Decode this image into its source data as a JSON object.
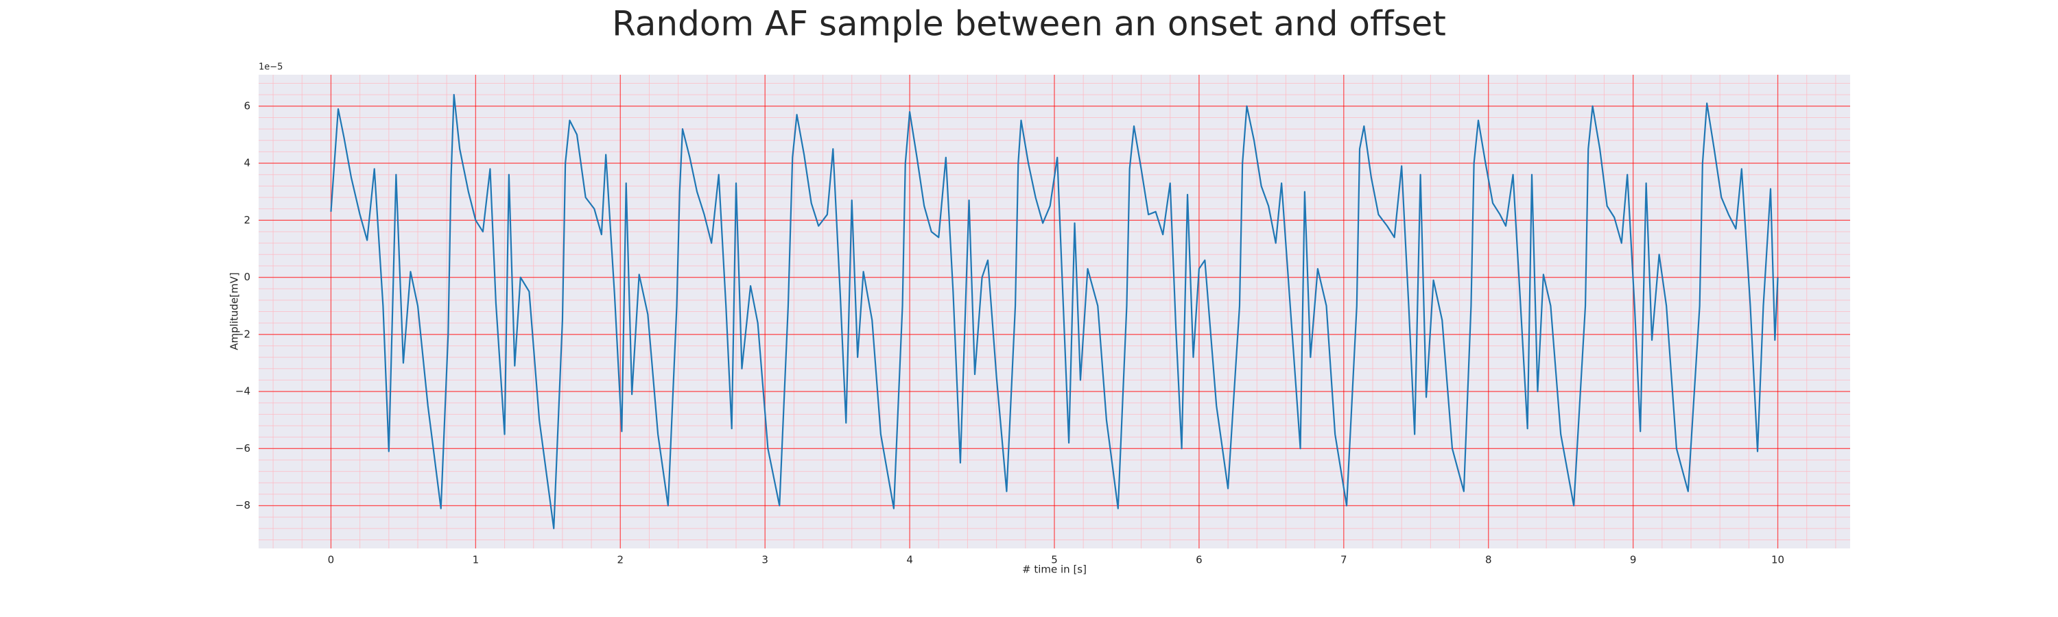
{
  "chart_data": {
    "type": "line",
    "title": "Random AF sample between an onset and offset",
    "x_label": "# time in [s]",
    "y_label": "Amplitude[mV]",
    "y_offset_label": "1e−5",
    "color": "#1f77b4",
    "grid": true,
    "minor_grid": true,
    "minor_divisions": 5,
    "xlim": [
      -0.5,
      10.5
    ],
    "ylim": [
      -9.5,
      7.1
    ],
    "xticks": [
      0,
      1,
      2,
      3,
      4,
      5,
      6,
      7,
      8,
      9,
      10
    ],
    "yticks": [
      {
        "value": -8,
        "label": "−8"
      },
      {
        "value": -6,
        "label": "−6"
      },
      {
        "value": -4,
        "label": "−4"
      },
      {
        "value": -2,
        "label": "−2"
      },
      0,
      2,
      4,
      6
    ],
    "x": [
      0,
      0.05,
      0.09,
      0.14,
      0.2,
      0.25,
      0.3,
      0.36,
      0.4,
      0.45,
      0.5,
      0.55,
      0.6,
      0.67,
      0.76,
      0.81,
      0.83,
      0.85,
      0.89,
      0.95,
      1.0,
      1.05,
      1.1,
      1.14,
      1.2,
      1.23,
      1.27,
      1.31,
      1.37,
      1.44,
      1.54,
      1.6,
      1.62,
      1.65,
      1.7,
      1.76,
      1.82,
      1.87,
      1.9,
      1.96,
      2.01,
      2.04,
      2.08,
      2.13,
      2.19,
      2.26,
      2.33,
      2.39,
      2.41,
      2.43,
      2.48,
      2.53,
      2.58,
      2.63,
      2.68,
      2.73,
      2.77,
      2.8,
      2.84,
      2.9,
      2.95,
      3.02,
      3.1,
      3.16,
      3.19,
      3.22,
      3.27,
      3.32,
      3.37,
      3.43,
      3.47,
      3.52,
      3.56,
      3.6,
      3.64,
      3.68,
      3.74,
      3.8,
      3.89,
      3.95,
      3.97,
      4.0,
      4.05,
      4.1,
      4.15,
      4.2,
      4.25,
      4.3,
      4.35,
      4.41,
      4.45,
      4.5,
      4.54,
      4.6,
      4.67,
      4.73,
      4.75,
      4.77,
      4.82,
      4.87,
      4.92,
      4.97,
      5.02,
      5.06,
      5.1,
      5.14,
      5.18,
      5.23,
      5.3,
      5.36,
      5.44,
      5.5,
      5.52,
      5.55,
      5.6,
      5.65,
      5.7,
      5.75,
      5.8,
      5.84,
      5.88,
      5.92,
      5.96,
      6.0,
      6.04,
      6.12,
      6.2,
      6.28,
      6.3,
      6.33,
      6.38,
      6.43,
      6.48,
      6.53,
      6.57,
      6.63,
      6.7,
      6.73,
      6.77,
      6.82,
      6.88,
      6.94,
      7.02,
      7.09,
      7.11,
      7.14,
      7.19,
      7.24,
      7.3,
      7.35,
      7.4,
      7.45,
      7.49,
      7.53,
      7.57,
      7.62,
      7.68,
      7.75,
      7.83,
      7.88,
      7.9,
      7.93,
      7.98,
      8.03,
      8.08,
      8.12,
      8.17,
      8.22,
      8.27,
      8.3,
      8.34,
      8.38,
      8.43,
      8.5,
      8.59,
      8.67,
      8.69,
      8.72,
      8.77,
      8.82,
      8.87,
      8.92,
      8.96,
      9.01,
      9.05,
      9.09,
      9.13,
      9.18,
      9.23,
      9.3,
      9.38,
      9.46,
      9.48,
      9.51,
      9.56,
      9.61,
      9.66,
      9.71,
      9.75,
      9.81,
      9.86,
      9.9,
      9.95,
      9.98,
      10.0
    ],
    "values": [
      2.3,
      5.9,
      4.9,
      3.5,
      2.2,
      1.3,
      3.8,
      -1.0,
      -6.1,
      3.6,
      -3.0,
      0.2,
      -1.0,
      -4.5,
      -8.1,
      -2.0,
      3.5,
      6.4,
      4.5,
      3.0,
      2.0,
      1.6,
      3.8,
      -0.9,
      -5.5,
      3.6,
      -3.1,
      0.0,
      -0.5,
      -5.0,
      -8.8,
      -1.5,
      4.0,
      5.5,
      5.0,
      2.8,
      2.4,
      1.5,
      4.3,
      -0.6,
      -5.4,
      3.3,
      -4.1,
      0.1,
      -1.3,
      -5.5,
      -8.0,
      -1.0,
      3.0,
      5.2,
      4.2,
      3.0,
      2.2,
      1.2,
      3.6,
      -1.0,
      -5.3,
      3.3,
      -3.2,
      -0.3,
      -1.6,
      -6.0,
      -8.0,
      -1.0,
      4.2,
      5.7,
      4.3,
      2.6,
      1.8,
      2.2,
      4.5,
      -0.6,
      -5.1,
      2.7,
      -2.8,
      0.2,
      -1.5,
      -5.5,
      -8.1,
      -1.0,
      4.0,
      5.8,
      4.2,
      2.5,
      1.6,
      1.4,
      4.2,
      -0.5,
      -6.5,
      2.7,
      -3.4,
      0.0,
      0.6,
      -3.5,
      -7.5,
      -1.0,
      4.0,
      5.5,
      4.0,
      2.8,
      1.9,
      2.5,
      4.2,
      -0.8,
      -5.8,
      1.9,
      -3.6,
      0.3,
      -1.0,
      -5.0,
      -8.1,
      -1.0,
      3.8,
      5.3,
      3.8,
      2.2,
      2.3,
      1.5,
      3.3,
      -1.8,
      -6.0,
      2.9,
      -2.8,
      0.3,
      0.6,
      -4.5,
      -7.4,
      -1.0,
      4.0,
      6.0,
      4.8,
      3.2,
      2.5,
      1.2,
      3.3,
      -1.0,
      -6.0,
      3.0,
      -2.8,
      0.3,
      -1.0,
      -5.5,
      -8.0,
      -1.0,
      4.5,
      5.3,
      3.5,
      2.2,
      1.8,
      1.4,
      3.9,
      -1.1,
      -5.5,
      3.6,
      -4.2,
      -0.1,
      -1.5,
      -6.0,
      -7.5,
      -1.0,
      4.0,
      5.5,
      4.0,
      2.6,
      2.2,
      1.8,
      3.6,
      -0.8,
      -5.3,
      3.6,
      -4.0,
      0.1,
      -1.0,
      -5.5,
      -8.0,
      -1.0,
      4.5,
      6.0,
      4.5,
      2.5,
      2.1,
      1.2,
      3.6,
      -1.0,
      -5.4,
      3.3,
      -2.2,
      0.8,
      -1.0,
      -6.0,
      -7.5,
      -1.0,
      4.0,
      6.1,
      4.5,
      2.8,
      2.2,
      1.7,
      3.8,
      -1.0,
      -6.1,
      -1.0,
      3.1,
      -2.2,
      0.0
    ]
  }
}
